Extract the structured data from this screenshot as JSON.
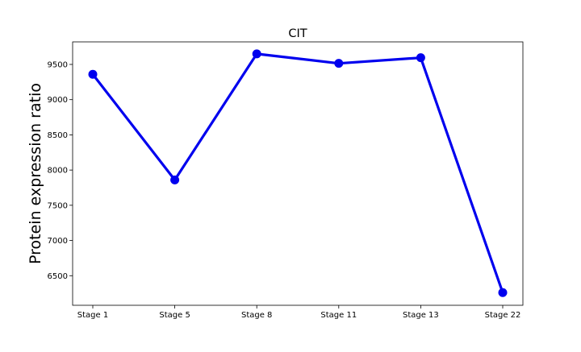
{
  "chart_data": {
    "type": "line",
    "title": "CIT",
    "xlabel": "",
    "ylabel": "Protein expression ratio",
    "categories": [
      "Stage 1",
      "Stage 5",
      "Stage 8",
      "Stage 11",
      "Stage 13",
      "Stage 22"
    ],
    "series": [
      {
        "name": "CIT",
        "values": [
          9360,
          7860,
          9650,
          9515,
          9595,
          6260
        ],
        "color": "#0000ee"
      }
    ],
    "ylim": [
      6080,
      9820
    ],
    "yticks": [
      6500,
      7000,
      7500,
      8000,
      8500,
      9000,
      9500
    ],
    "ytick_labels": [
      "6500",
      "7000",
      "7500",
      "8000",
      "8500",
      "9000",
      "9500"
    ],
    "grid": false,
    "legend": "none"
  }
}
